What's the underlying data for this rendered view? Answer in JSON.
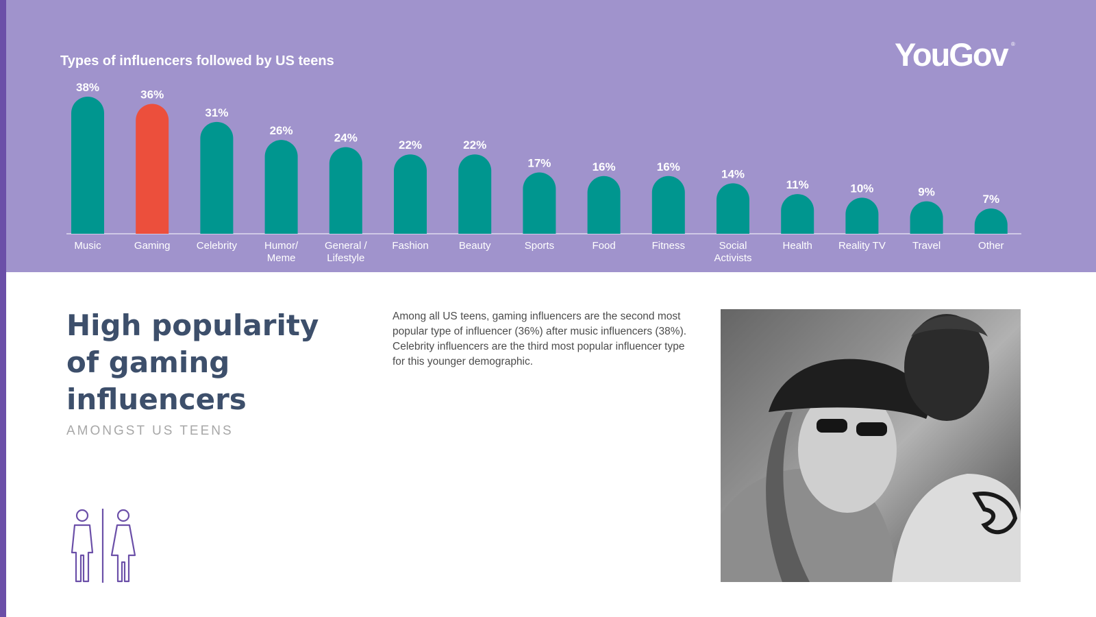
{
  "chart_data": {
    "type": "bar",
    "title": "Types of influencers followed by US teens",
    "categories": [
      "Music",
      "Gaming",
      "Celebrity",
      "Humor/\nMeme",
      "General /\nLifestyle",
      "Fashion",
      "Beauty",
      "Sports",
      "Food",
      "Fitness",
      "Social\nActivists",
      "Health",
      "Reality TV",
      "Travel",
      "Other"
    ],
    "values": [
      38,
      36,
      31,
      26,
      24,
      22,
      22,
      17,
      16,
      16,
      14,
      11,
      10,
      9,
      7
    ],
    "value_labels": [
      "38%",
      "36%",
      "31%",
      "26%",
      "24%",
      "22%",
      "22%",
      "17%",
      "16%",
      "16%",
      "14%",
      "11%",
      "10%",
      "9%",
      "7%"
    ],
    "highlight_index": 1,
    "colors": {
      "bar": "#00968f",
      "highlight": "#ec4f3c"
    },
    "ylim": [
      0,
      38
    ],
    "grid": false
  },
  "logo": {
    "text": "YouGov",
    "mark": "®"
  },
  "headline": "High popularity\nof gaming\ninfluencers",
  "subheadline": "AMONGST US TEENS",
  "body": "Among all US teens, gaming influencers are the second most popular type of influencer (36%) after music influencers (38%). Celebrity influencers are the third most popular influencer type for this younger demographic.",
  "icons": {
    "people": "man-woman-icon"
  },
  "colors": {
    "panel": "#a093cc",
    "stripe": "#6b4fa8",
    "headline": "#3d4f6b"
  }
}
